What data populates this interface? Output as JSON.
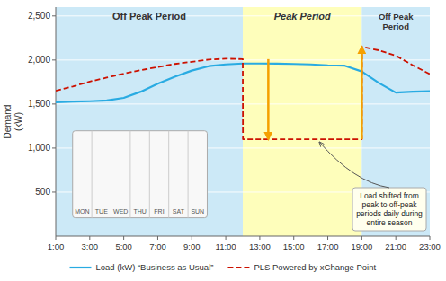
{
  "chart_data": {
    "type": "line",
    "y_label": "Demand\n(kW)",
    "xlim": [
      1,
      23
    ],
    "xticks": [
      {
        "value": 1,
        "label": "1:00"
      },
      {
        "value": 3,
        "label": "3:00"
      },
      {
        "value": 5,
        "label": "5:00"
      },
      {
        "value": 7,
        "label": "7:00"
      },
      {
        "value": 9,
        "label": "9:00"
      },
      {
        "value": 11,
        "label": "11:00"
      },
      {
        "value": 13,
        "label": "13:00"
      },
      {
        "value": 15,
        "label": "15:00"
      },
      {
        "value": 17,
        "label": "17:00"
      },
      {
        "value": 19,
        "label": "19:00"
      },
      {
        "value": 21,
        "label": "21:00"
      },
      {
        "value": 23,
        "label": "23:00"
      }
    ],
    "ylim": [
      0,
      2600
    ],
    "yticks": [
      500,
      {
        "value": 1000,
        "label": "1,000"
      },
      {
        "value": 1500,
        "label": "1,500"
      },
      {
        "value": 2000,
        "label": "2,000"
      },
      {
        "value": 2500,
        "label": "2,500"
      }
    ],
    "grid": true,
    "legend": "bottom",
    "series": [
      {
        "name": "Load (kW) “Business as Usual”",
        "color": "#29abe2",
        "line_style": "solid",
        "x": [
          1,
          2,
          3,
          4,
          5,
          6,
          7,
          8,
          9,
          10,
          11,
          12,
          13,
          14,
          15,
          16,
          17,
          18,
          19,
          20,
          21,
          22,
          23
        ],
        "values": [
          1520,
          1528,
          1532,
          1540,
          1570,
          1640,
          1730,
          1810,
          1880,
          1930,
          1950,
          1960,
          1960,
          1958,
          1955,
          1950,
          1940,
          1935,
          1870,
          1740,
          1630,
          1640,
          1645
        ]
      },
      {
        "name": "PLS Powered by xChange Point",
        "color": "#cc1100",
        "line_style": "dashed",
        "x": [
          1,
          2,
          3,
          4,
          5,
          6,
          7,
          8,
          9,
          10,
          11,
          12,
          12.01,
          13,
          14,
          15,
          16,
          17,
          17.5,
          18,
          18.5,
          19,
          19.01,
          20,
          21,
          22,
          23
        ],
        "values": [
          1650,
          1700,
          1755,
          1800,
          1845,
          1885,
          1920,
          1955,
          1980,
          2005,
          2015,
          2010,
          1100,
          1100,
          1100,
          1100,
          1100,
          1100,
          1100,
          1100,
          1100,
          1100,
          2150,
          2110,
          2050,
          1940,
          1840
        ]
      }
    ],
    "bands": [
      {
        "label": "Off Peak Period",
        "start": 1,
        "end": 12,
        "color": "#cce9f7"
      },
      {
        "label": "Peak Period",
        "start": 12,
        "end": 19,
        "color": "#fefebb"
      },
      {
        "label": "Off Peak\nPeriod",
        "start": 19,
        "end": 23,
        "color": "#cce9f7"
      }
    ],
    "arrows": [
      {
        "x": 13.5,
        "y_start": 2010,
        "y_end": 1100,
        "color": "#f5a000"
      },
      {
        "x": 19.0,
        "y_start": 1100,
        "y_end": 2150,
        "color": "#f5a000"
      }
    ],
    "annotations": [
      {
        "text": "Load shifted from\npeak to off-peak\nperiods daily during\nentire season",
        "x": 16.5,
        "y": 1100
      }
    ],
    "inset": {
      "days": [
        "MON",
        "TUE",
        "WED",
        "THU",
        "FRI",
        "SAT",
        "SUN"
      ]
    }
  }
}
